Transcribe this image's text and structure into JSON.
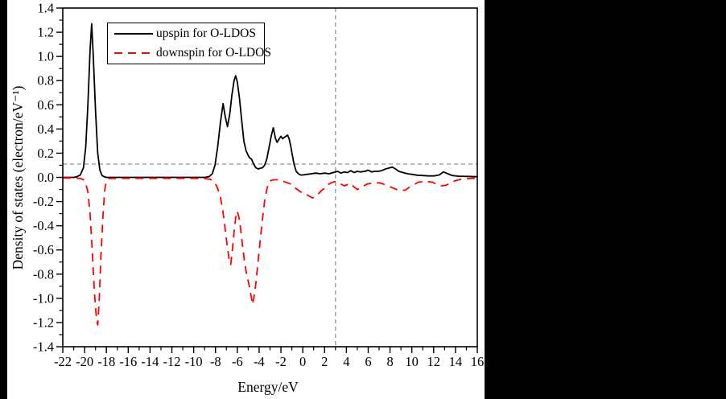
{
  "figure": {
    "background": "#ffffff",
    "left_bar_color": "#000000",
    "right_bar_color": "#000000",
    "axis_color": "#000000"
  },
  "legend": {
    "items": [
      {
        "label": "upspin for O-LDOS",
        "color": "#000000",
        "style": "solid"
      },
      {
        "label": "downspin for O-LDOS",
        "color": "#ff0000",
        "style": "dashed"
      }
    ]
  },
  "chart_data": {
    "type": "line",
    "title": "",
    "xlabel": "Energy/eV",
    "ylabel": "Density of states (electron/eV⁻¹)",
    "xlim": [
      -22,
      16
    ],
    "ylim": [
      -1.4,
      1.4
    ],
    "x_ticks": [
      -22,
      -20,
      -18,
      -16,
      -14,
      -12,
      -10,
      -8,
      -6,
      -4,
      -2,
      0,
      2,
      4,
      6,
      8,
      10,
      12,
      14,
      16
    ],
    "y_ticks": [
      -1.4,
      -1.2,
      -1.0,
      -0.8,
      -0.6,
      -0.4,
      -0.2,
      0.0,
      0.2,
      0.4,
      0.6,
      0.8,
      1.0,
      1.2,
      1.4
    ],
    "x_minor_step": 1,
    "y_minor_step": 0.1,
    "grid": false,
    "legend_position": "top-left-inside",
    "reference_lines": {
      "horizontal_y": 0.11,
      "vertical_x": 3.0,
      "color": "#8a8a8a",
      "style": "dashed"
    },
    "series": [
      {
        "name": "upspin for O-LDOS",
        "color": "#000000",
        "style": "solid",
        "points": [
          [
            -22,
            0
          ],
          [
            -21,
            0
          ],
          [
            -20.7,
            0.005
          ],
          [
            -20.4,
            0.02
          ],
          [
            -20.1,
            0.08
          ],
          [
            -19.9,
            0.25
          ],
          [
            -19.7,
            0.6
          ],
          [
            -19.5,
            1.05
          ],
          [
            -19.35,
            1.27
          ],
          [
            -19.2,
            1.0
          ],
          [
            -19.0,
            0.55
          ],
          [
            -18.8,
            0.2
          ],
          [
            -18.6,
            0.06
          ],
          [
            -18.4,
            0.015
          ],
          [
            -18.2,
            0.005
          ],
          [
            -18,
            0
          ],
          [
            -17,
            0
          ],
          [
            -16,
            0
          ],
          [
            -15,
            0
          ],
          [
            -14,
            0
          ],
          [
            -13,
            0
          ],
          [
            -12,
            0
          ],
          [
            -11,
            0
          ],
          [
            -10,
            0
          ],
          [
            -9,
            0
          ],
          [
            -8.6,
            0.005
          ],
          [
            -8.3,
            0.03
          ],
          [
            -8.05,
            0.1
          ],
          [
            -7.8,
            0.25
          ],
          [
            -7.55,
            0.45
          ],
          [
            -7.3,
            0.61
          ],
          [
            -7.1,
            0.5
          ],
          [
            -6.9,
            0.42
          ],
          [
            -6.7,
            0.52
          ],
          [
            -6.5,
            0.68
          ],
          [
            -6.3,
            0.8
          ],
          [
            -6.15,
            0.84
          ],
          [
            -6.0,
            0.79
          ],
          [
            -5.8,
            0.65
          ],
          [
            -5.6,
            0.47
          ],
          [
            -5.4,
            0.3
          ],
          [
            -5.2,
            0.22
          ],
          [
            -5.0,
            0.18
          ],
          [
            -4.85,
            0.16
          ],
          [
            -4.7,
            0.15
          ],
          [
            -4.5,
            0.11
          ],
          [
            -4.3,
            0.08
          ],
          [
            -4.1,
            0.07
          ],
          [
            -3.9,
            0.075
          ],
          [
            -3.7,
            0.08
          ],
          [
            -3.5,
            0.1
          ],
          [
            -3.3,
            0.15
          ],
          [
            -3.1,
            0.24
          ],
          [
            -2.9,
            0.34
          ],
          [
            -2.7,
            0.41
          ],
          [
            -2.5,
            0.32
          ],
          [
            -2.35,
            0.29
          ],
          [
            -2.15,
            0.32
          ],
          [
            -2.0,
            0.34
          ],
          [
            -1.85,
            0.32
          ],
          [
            -1.7,
            0.33
          ],
          [
            -1.55,
            0.34
          ],
          [
            -1.4,
            0.35
          ],
          [
            -1.25,
            0.32
          ],
          [
            -1.1,
            0.26
          ],
          [
            -0.95,
            0.18
          ],
          [
            -0.8,
            0.11
          ],
          [
            -0.6,
            0.05
          ],
          [
            -0.4,
            0.03
          ],
          [
            -0.2,
            0.02
          ],
          [
            0,
            0.02
          ],
          [
            0.4,
            0.025
          ],
          [
            0.8,
            0.03
          ],
          [
            1.2,
            0.035
          ],
          [
            1.6,
            0.03
          ],
          [
            2.0,
            0.035
          ],
          [
            2.4,
            0.03
          ],
          [
            2.8,
            0.04
          ],
          [
            3.2,
            0.05
          ],
          [
            3.5,
            0.035
          ],
          [
            3.8,
            0.045
          ],
          [
            4.1,
            0.04
          ],
          [
            4.4,
            0.055
          ],
          [
            4.7,
            0.04
          ],
          [
            5.0,
            0.05
          ],
          [
            5.3,
            0.045
          ],
          [
            5.7,
            0.05
          ],
          [
            6.0,
            0.06
          ],
          [
            6.3,
            0.045
          ],
          [
            6.6,
            0.05
          ],
          [
            6.9,
            0.05
          ],
          [
            7.2,
            0.055
          ],
          [
            7.6,
            0.07
          ],
          [
            8.0,
            0.08
          ],
          [
            8.2,
            0.085
          ],
          [
            8.5,
            0.07
          ],
          [
            8.8,
            0.05
          ],
          [
            9.2,
            0.04
          ],
          [
            9.6,
            0.03
          ],
          [
            10.0,
            0.025
          ],
          [
            10.5,
            0.018
          ],
          [
            11.0,
            0.015
          ],
          [
            11.5,
            0.012
          ],
          [
            12.0,
            0.012
          ],
          [
            12.5,
            0.02
          ],
          [
            12.9,
            0.045
          ],
          [
            13.3,
            0.03
          ],
          [
            13.7,
            0.015
          ],
          [
            14.2,
            0.01
          ],
          [
            15.0,
            0.008
          ],
          [
            16,
            0.005
          ]
        ]
      },
      {
        "name": "downspin for O-LDOS",
        "color": "#ff0000",
        "style": "dashed",
        "points": [
          [
            -22,
            -0.005
          ],
          [
            -21,
            -0.005
          ],
          [
            -20.4,
            -0.008
          ],
          [
            -20.1,
            -0.02
          ],
          [
            -19.9,
            -0.05
          ],
          [
            -19.7,
            -0.12
          ],
          [
            -19.5,
            -0.3
          ],
          [
            -19.3,
            -0.6
          ],
          [
            -19.1,
            -0.95
          ],
          [
            -18.9,
            -1.18
          ],
          [
            -18.8,
            -1.22
          ],
          [
            -18.65,
            -1.0
          ],
          [
            -18.5,
            -0.65
          ],
          [
            -18.3,
            -0.3
          ],
          [
            -18.15,
            -0.1
          ],
          [
            -18.0,
            -0.03
          ],
          [
            -17.8,
            -0.01
          ],
          [
            -17,
            -0.008
          ],
          [
            -16,
            -0.008
          ],
          [
            -15,
            -0.008
          ],
          [
            -14,
            -0.008
          ],
          [
            -13,
            -0.008
          ],
          [
            -12,
            -0.008
          ],
          [
            -11,
            -0.008
          ],
          [
            -10,
            -0.008
          ],
          [
            -9,
            -0.01
          ],
          [
            -8.5,
            -0.015
          ],
          [
            -8.2,
            -0.03
          ],
          [
            -7.9,
            -0.07
          ],
          [
            -7.6,
            -0.14
          ],
          [
            -7.35,
            -0.26
          ],
          [
            -7.15,
            -0.4
          ],
          [
            -6.95,
            -0.55
          ],
          [
            -6.75,
            -0.68
          ],
          [
            -6.6,
            -0.72
          ],
          [
            -6.45,
            -0.6
          ],
          [
            -6.3,
            -0.45
          ],
          [
            -6.15,
            -0.33
          ],
          [
            -6.0,
            -0.28
          ],
          [
            -5.85,
            -0.33
          ],
          [
            -5.7,
            -0.42
          ],
          [
            -5.5,
            -0.58
          ],
          [
            -5.3,
            -0.72
          ],
          [
            -5.1,
            -0.82
          ],
          [
            -4.9,
            -0.9
          ],
          [
            -4.7,
            -1.0
          ],
          [
            -4.6,
            -1.05
          ],
          [
            -4.45,
            -0.98
          ],
          [
            -4.3,
            -0.88
          ],
          [
            -4.1,
            -0.7
          ],
          [
            -3.9,
            -0.52
          ],
          [
            -3.7,
            -0.35
          ],
          [
            -3.5,
            -0.2
          ],
          [
            -3.3,
            -0.1
          ],
          [
            -3.1,
            -0.04
          ],
          [
            -2.9,
            -0.025
          ],
          [
            -2.6,
            -0.02
          ],
          [
            -2.3,
            -0.02
          ],
          [
            -2.0,
            -0.025
          ],
          [
            -1.7,
            -0.035
          ],
          [
            -1.4,
            -0.045
          ],
          [
            -1.1,
            -0.055
          ],
          [
            -0.8,
            -0.08
          ],
          [
            -0.5,
            -0.1
          ],
          [
            -0.2,
            -0.12
          ],
          [
            0.1,
            -0.13
          ],
          [
            0.4,
            -0.145
          ],
          [
            0.7,
            -0.16
          ],
          [
            0.9,
            -0.17
          ],
          [
            1.1,
            -0.16
          ],
          [
            1.4,
            -0.14
          ],
          [
            1.7,
            -0.11
          ],
          [
            2.0,
            -0.09
          ],
          [
            2.3,
            -0.06
          ],
          [
            2.6,
            -0.045
          ],
          [
            2.9,
            -0.035
          ],
          [
            3.2,
            -0.04
          ],
          [
            3.5,
            -0.055
          ],
          [
            3.8,
            -0.07
          ],
          [
            4.1,
            -0.06
          ],
          [
            4.4,
            -0.05
          ],
          [
            4.7,
            -0.08
          ],
          [
            5.0,
            -0.1
          ],
          [
            5.3,
            -0.09
          ],
          [
            5.6,
            -0.07
          ],
          [
            5.9,
            -0.055
          ],
          [
            6.2,
            -0.05
          ],
          [
            6.6,
            -0.045
          ],
          [
            7.0,
            -0.045
          ],
          [
            7.4,
            -0.055
          ],
          [
            7.8,
            -0.07
          ],
          [
            8.2,
            -0.085
          ],
          [
            8.6,
            -0.1
          ],
          [
            9.0,
            -0.11
          ],
          [
            9.4,
            -0.105
          ],
          [
            9.8,
            -0.08
          ],
          [
            10.2,
            -0.06
          ],
          [
            10.6,
            -0.04
          ],
          [
            11.0,
            -0.035
          ],
          [
            11.4,
            -0.035
          ],
          [
            11.9,
            -0.04
          ],
          [
            12.3,
            -0.06
          ],
          [
            12.7,
            -0.07
          ],
          [
            13.1,
            -0.065
          ],
          [
            13.5,
            -0.05
          ],
          [
            13.9,
            -0.03
          ],
          [
            14.3,
            -0.02
          ],
          [
            14.8,
            -0.012
          ],
          [
            15.5,
            -0.008
          ],
          [
            16,
            -0.005
          ]
        ]
      }
    ]
  }
}
